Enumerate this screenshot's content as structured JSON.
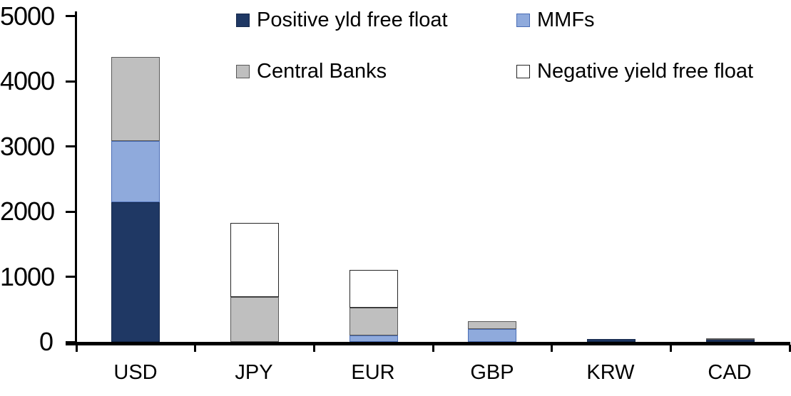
{
  "chart_data": {
    "type": "bar",
    "subtype": "stacked-vertical",
    "title": "",
    "categories": [
      "USD",
      "JPY",
      "EUR",
      "GBP",
      "KRW",
      "CAD"
    ],
    "series": [
      {
        "name": "Positive yld free float",
        "color": "#1F3864",
        "border_color": "#16294C",
        "values": [
          2150,
          0,
          0,
          0,
          50,
          40
        ]
      },
      {
        "name": "MMFs",
        "color": "#8FAADC",
        "border_color": "#4A6DB5",
        "values": [
          940,
          0,
          100,
          200,
          0,
          0
        ]
      },
      {
        "name": "Central Banks",
        "color": "#BFBFBF",
        "border_color": "#595959",
        "values": [
          1290,
          690,
          430,
          120,
          0,
          20
        ]
      },
      {
        "name": "Negative yield free float",
        "color": "#FFFFFF",
        "border_color": "#262626",
        "values": [
          0,
          1140,
          580,
          0,
          0,
          0
        ]
      }
    ],
    "stack_totals": [
      4380,
      1830,
      1110,
      320,
      50,
      60
    ],
    "xlabel": "",
    "ylabel": "",
    "y_axis": {
      "min": 0,
      "max": 5000,
      "step": 1000,
      "ticks": [
        "0",
        "1000",
        "2000",
        "3000",
        "4000",
        "5000"
      ]
    },
    "legend": {
      "position": "top",
      "layout": "two-rows-two-columns"
    },
    "grid": "off",
    "axis_color": "#000000",
    "background_color": "#FFFFFF"
  }
}
